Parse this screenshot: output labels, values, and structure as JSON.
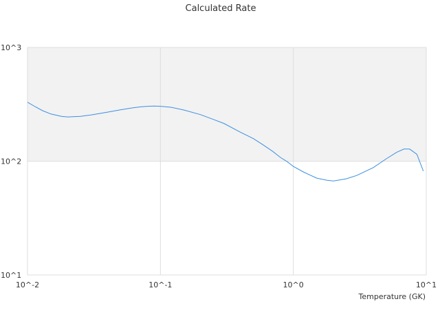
{
  "chart_data": {
    "type": "line",
    "title": "Calculated Rate",
    "xlabel": "Temperature (GK)",
    "ylabel": "",
    "x_scale": "log",
    "y_scale": "log",
    "xlim": [
      0.01,
      10
    ],
    "ylim": [
      10,
      1000
    ],
    "grid": true,
    "legend": "none",
    "x_ticks": [
      {
        "value": 0.01,
        "label": "10^-2"
      },
      {
        "value": 0.1,
        "label": "10^-1"
      },
      {
        "value": 1,
        "label": "10^0"
      },
      {
        "value": 10,
        "label": "10^1"
      }
    ],
    "y_ticks": [
      {
        "value": 10,
        "label": "10^1"
      },
      {
        "value": 100,
        "label": "10^2"
      },
      {
        "value": 1000,
        "label": "10^3"
      }
    ],
    "shaded_band": {
      "from": 100,
      "to": 1000,
      "color": "#f2f2f2"
    },
    "series": [
      {
        "color": "#3b8fe0",
        "x": [
          0.01,
          0.0115,
          0.013,
          0.015,
          0.018,
          0.02,
          0.025,
          0.03,
          0.04,
          0.05,
          0.06,
          0.07,
          0.08,
          0.09,
          0.1,
          0.12,
          0.15,
          0.2,
          0.25,
          0.3,
          0.4,
          0.5,
          0.6,
          0.7,
          0.8,
          0.9,
          1.0,
          1.2,
          1.5,
          1.8,
          2.0,
          2.5,
          3.0,
          4.0,
          5.0,
          6.0,
          6.8,
          7.5,
          8.5,
          9.5
        ],
        "y": [
          330,
          300,
          278,
          260,
          248,
          245,
          248,
          255,
          270,
          283,
          293,
          300,
          304,
          305,
          304,
          298,
          282,
          257,
          233,
          215,
          180,
          158,
          138,
          122,
          108,
          99,
          90,
          80,
          71,
          68,
          67,
          70,
          75,
          88,
          105,
          120,
          128,
          128,
          115,
          82
        ]
      }
    ]
  }
}
